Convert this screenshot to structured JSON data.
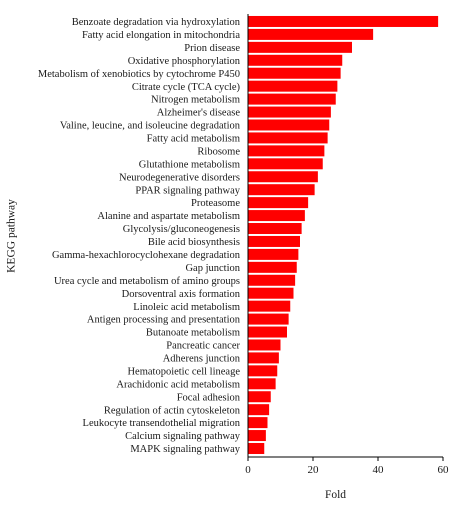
{
  "chart_data": {
    "type": "bar",
    "orientation": "horizontal",
    "title": "",
    "xlabel": "Fold",
    "ylabel": "KEGG pathway",
    "xlim": [
      0,
      60
    ],
    "xticks": [
      "0",
      "20",
      "40",
      "60"
    ],
    "grid": false,
    "bar_color": "#ff0000",
    "categories": [
      "Benzoate degradation via hydroxylation",
      "Fatty acid elongation in mitochondria",
      "Prion disease",
      "Oxidative phosphorylation",
      "Metabolism of xenobiotics by cytochrome P450",
      "Citrate cycle (TCA cycle)",
      "Nitrogen metabolism",
      "Alzheimer's disease",
      "Valine, leucine, and isoleucine degradation",
      "Fatty acid metabolism",
      "Ribosome",
      "Glutathione metabolism",
      "Neurodegenerative disorders",
      "PPAR signaling pathway",
      "Proteasome",
      "Alanine and aspartate metabolism",
      "Glycolysis/gluconeogenesis",
      "Bile acid biosynthesis",
      "Gamma-hexachlorocyclohexane degradation",
      "Gap junction",
      "Urea cycle and metabolism of amino groups",
      "Dorsoventral axis formation",
      "Linoleic acid metabolism",
      "Antigen processing and presentation",
      "Butanoate metabolism",
      "Pancreatic cancer",
      "Adherens junction",
      "Hematopoietic cell lineage",
      "Arachidonic acid metabolism",
      "Focal adhesion",
      "Regulation of actin cytoskeleton",
      "Leukocyte transendothelial migration",
      "Calcium signaling pathway",
      "MAPK signaling pathway"
    ],
    "values": [
      58.5,
      38.5,
      32,
      29,
      28.5,
      27.5,
      27,
      25.5,
      25,
      24.5,
      23.5,
      23,
      21.5,
      20.5,
      18.5,
      17.5,
      16.5,
      16,
      15.5,
      15,
      14.5,
      14,
      13,
      12.5,
      12,
      10,
      9.5,
      9,
      8.5,
      7,
      6.5,
      6,
      5.5,
      5
    ]
  }
}
